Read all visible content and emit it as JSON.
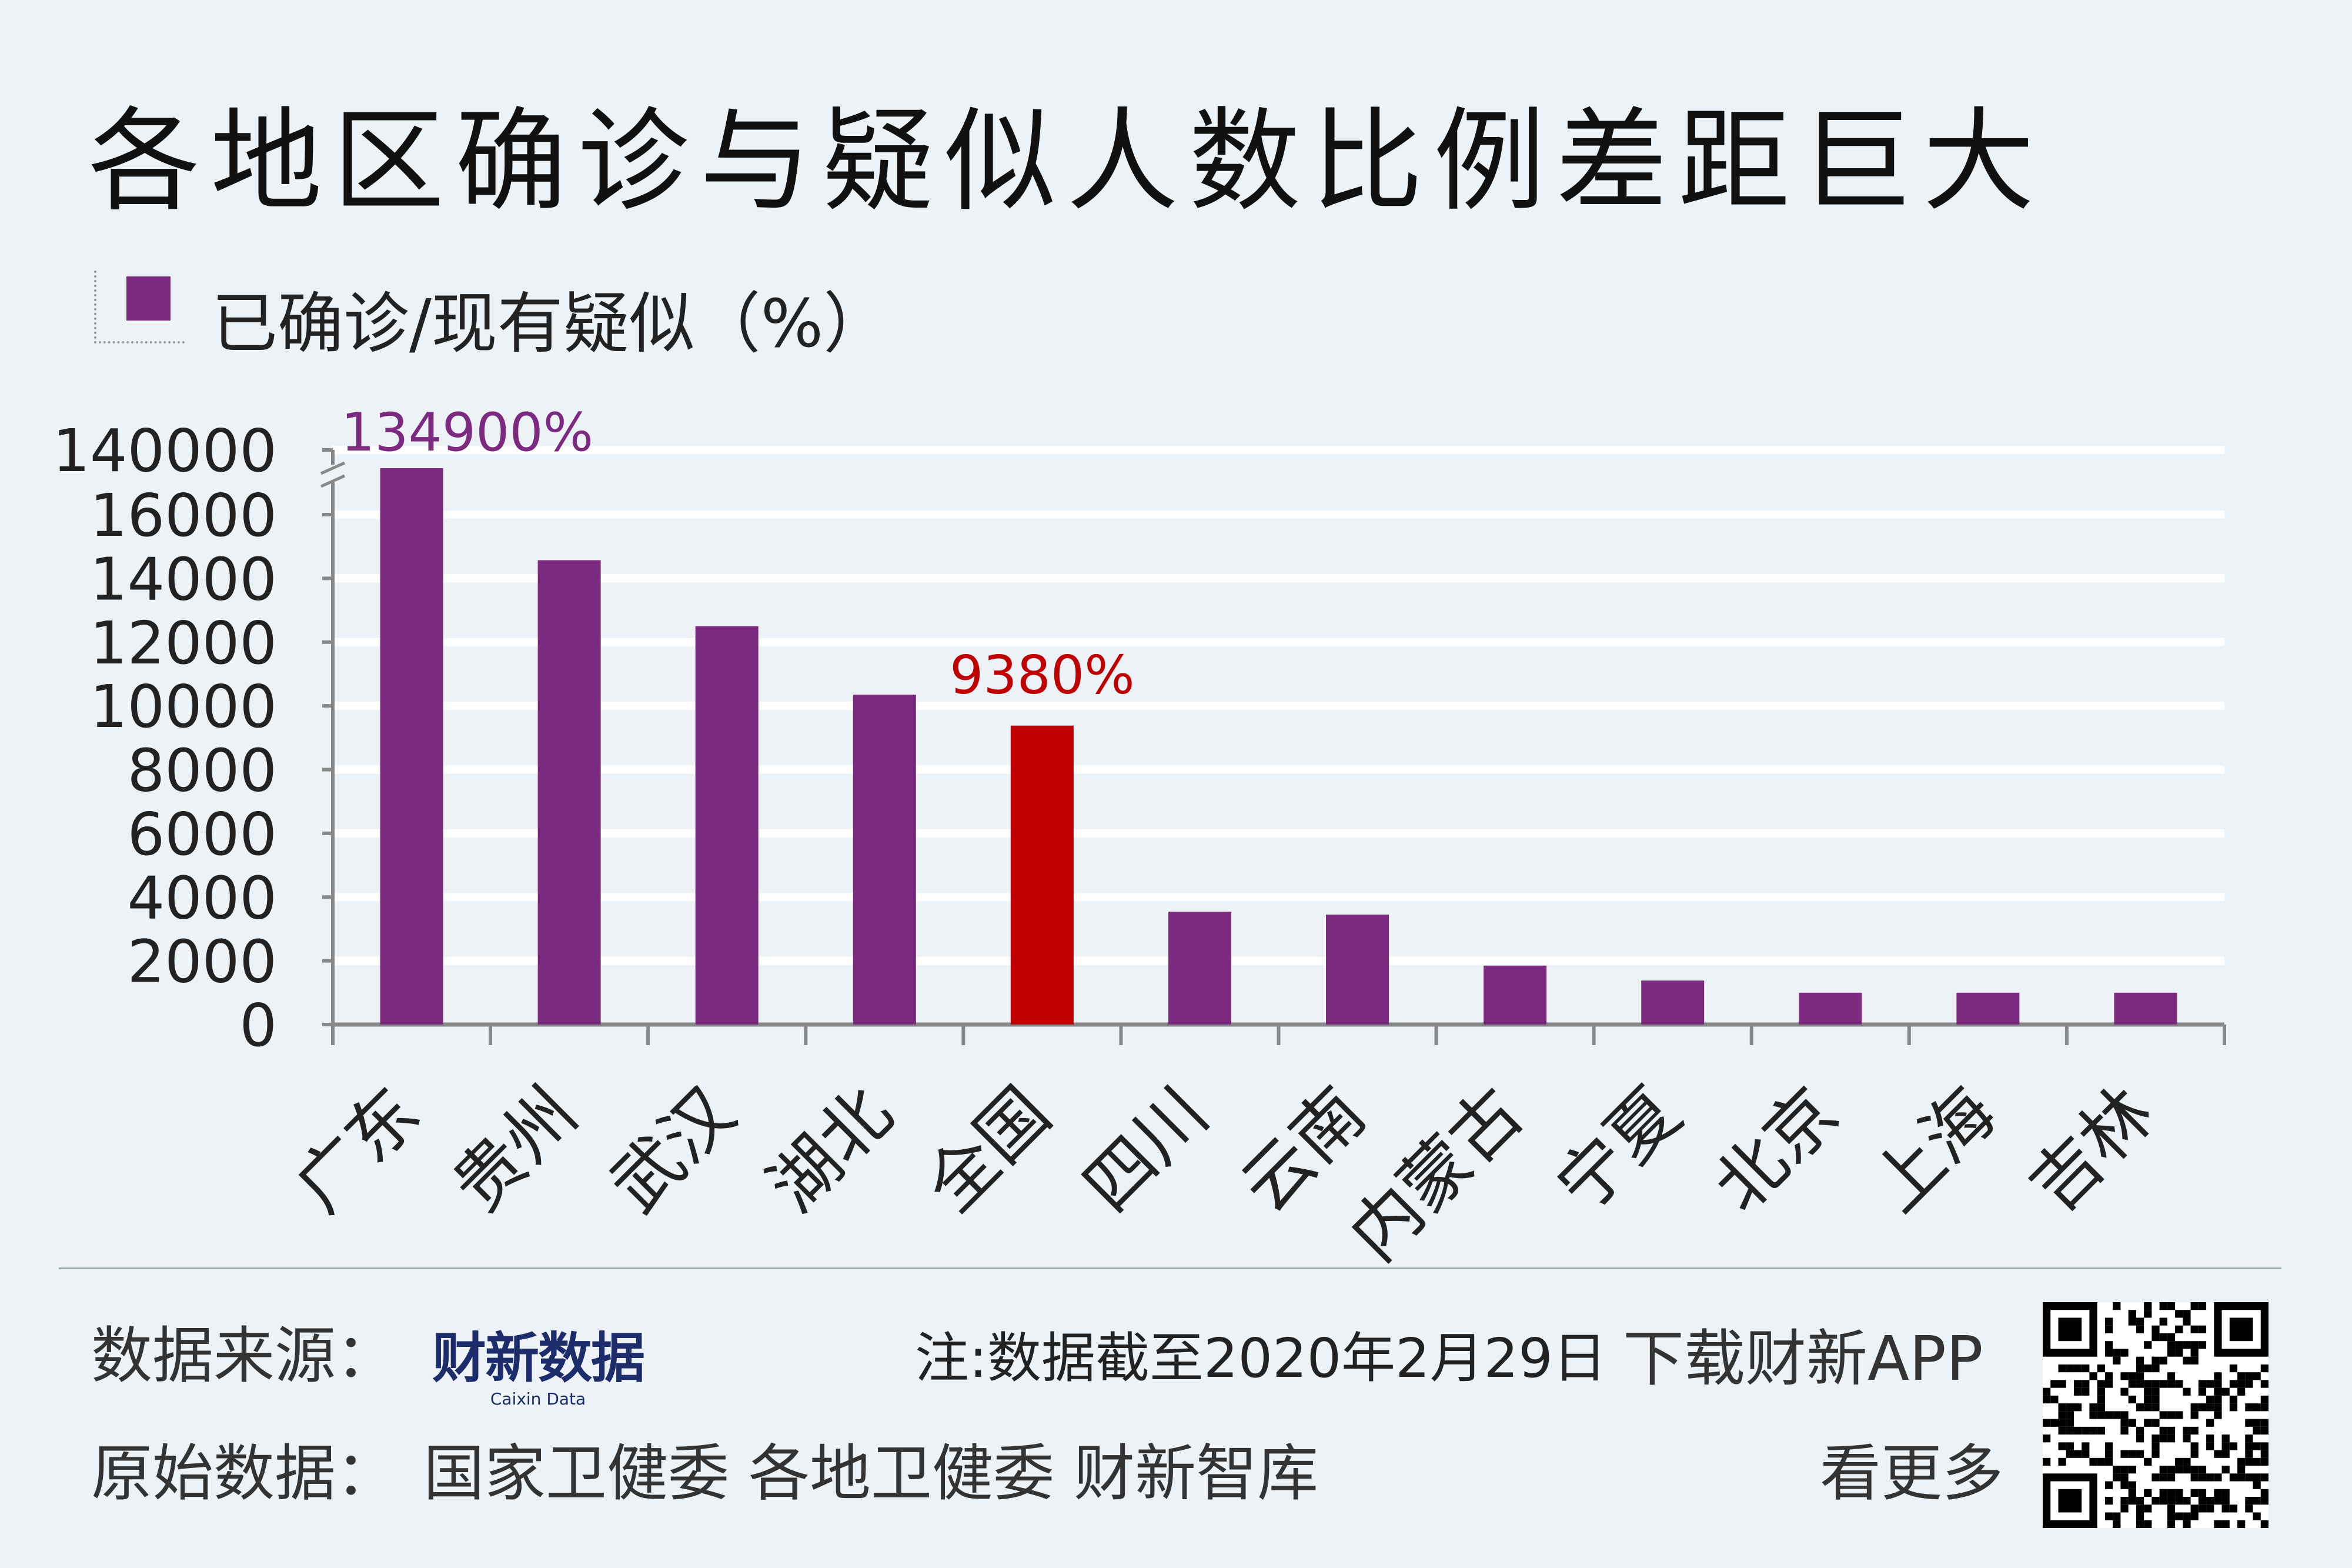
{
  "title": "各地区确诊与疑似人数比例差距巨大",
  "legend": {
    "label": "已确诊/现有疑似（%）",
    "color": "#7b2a80"
  },
  "colors": {
    "bar": "#7b2a80",
    "highlight": "#c00000",
    "gridline": "#ffffff",
    "axis": "#888888"
  },
  "chart_data": {
    "type": "bar",
    "title": "各地区确诊与疑似人数比例差距巨大",
    "legend": [
      "已确诊/现有疑似（%）"
    ],
    "legend_position": "top-left",
    "categories": [
      "广东",
      "贵州",
      "武汉",
      "湖北",
      "全国",
      "四川",
      "云南",
      "内蒙古",
      "宁夏",
      "北京",
      "上海",
      "吉林"
    ],
    "series": [
      {
        "name": "已确诊/现有疑似（%）",
        "values": [
          134900,
          14570,
          12500,
          10350,
          9380,
          3540,
          3450,
          1850,
          1380,
          1000,
          1000,
          1000
        ]
      }
    ],
    "highlight_category": "全国",
    "ylim": [
      0,
      16000
    ],
    "y_axis_break": {
      "after": 16000,
      "top_tick": 140000
    },
    "yticks": [
      "0",
      "2000",
      "4000",
      "6000",
      "8000",
      "10000",
      "12000",
      "14000",
      "16000",
      "140000"
    ],
    "data_labels": [
      {
        "category": "广东",
        "text": "134900%"
      },
      {
        "category": "全国",
        "text": "9380%"
      }
    ],
    "grid": true,
    "xlabel": "",
    "ylabel": ""
  },
  "footer": {
    "source_label": "数据来源：",
    "source_logo": "财新数据",
    "source_logo_sub": "Caixin Data",
    "note": "注:数据截至2020年2月29日",
    "download": "下载财新APP",
    "raw_label": "原始数据：",
    "raw_sources": "国家卫健委  各地卫健委  财新智库",
    "more": "看更多"
  }
}
